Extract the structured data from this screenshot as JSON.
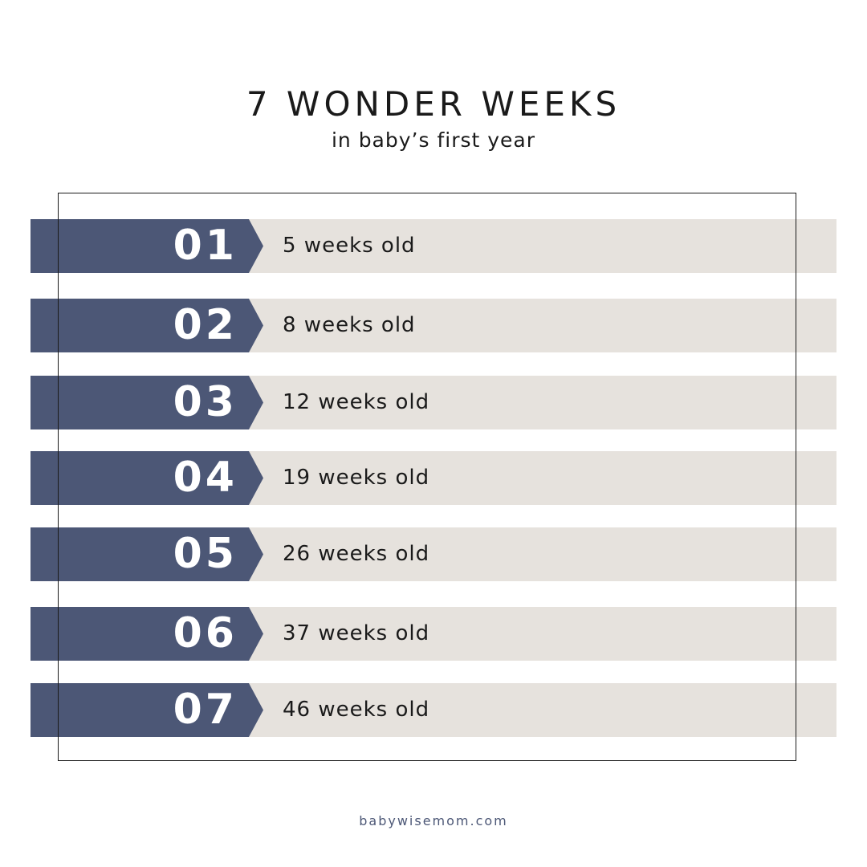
{
  "header": {
    "title": "7 WONDER WEEKS",
    "subtitle": "in baby’s first year"
  },
  "colors": {
    "tab": "#4c5776",
    "row_background": "#e6e2dd",
    "text": "#1a1a1a",
    "footer_text": "#4c5776"
  },
  "weeks": [
    {
      "number": "01",
      "label": "5 weeks old"
    },
    {
      "number": "02",
      "label": "8 weeks old"
    },
    {
      "number": "03",
      "label": "12 weeks old"
    },
    {
      "number": "04",
      "label": "19 weeks old"
    },
    {
      "number": "05",
      "label": "26 weeks old"
    },
    {
      "number": "06",
      "label": "37 weeks old"
    },
    {
      "number": "07",
      "label": "46 weeks old"
    }
  ],
  "footer": {
    "website": "babywisemom.com"
  }
}
